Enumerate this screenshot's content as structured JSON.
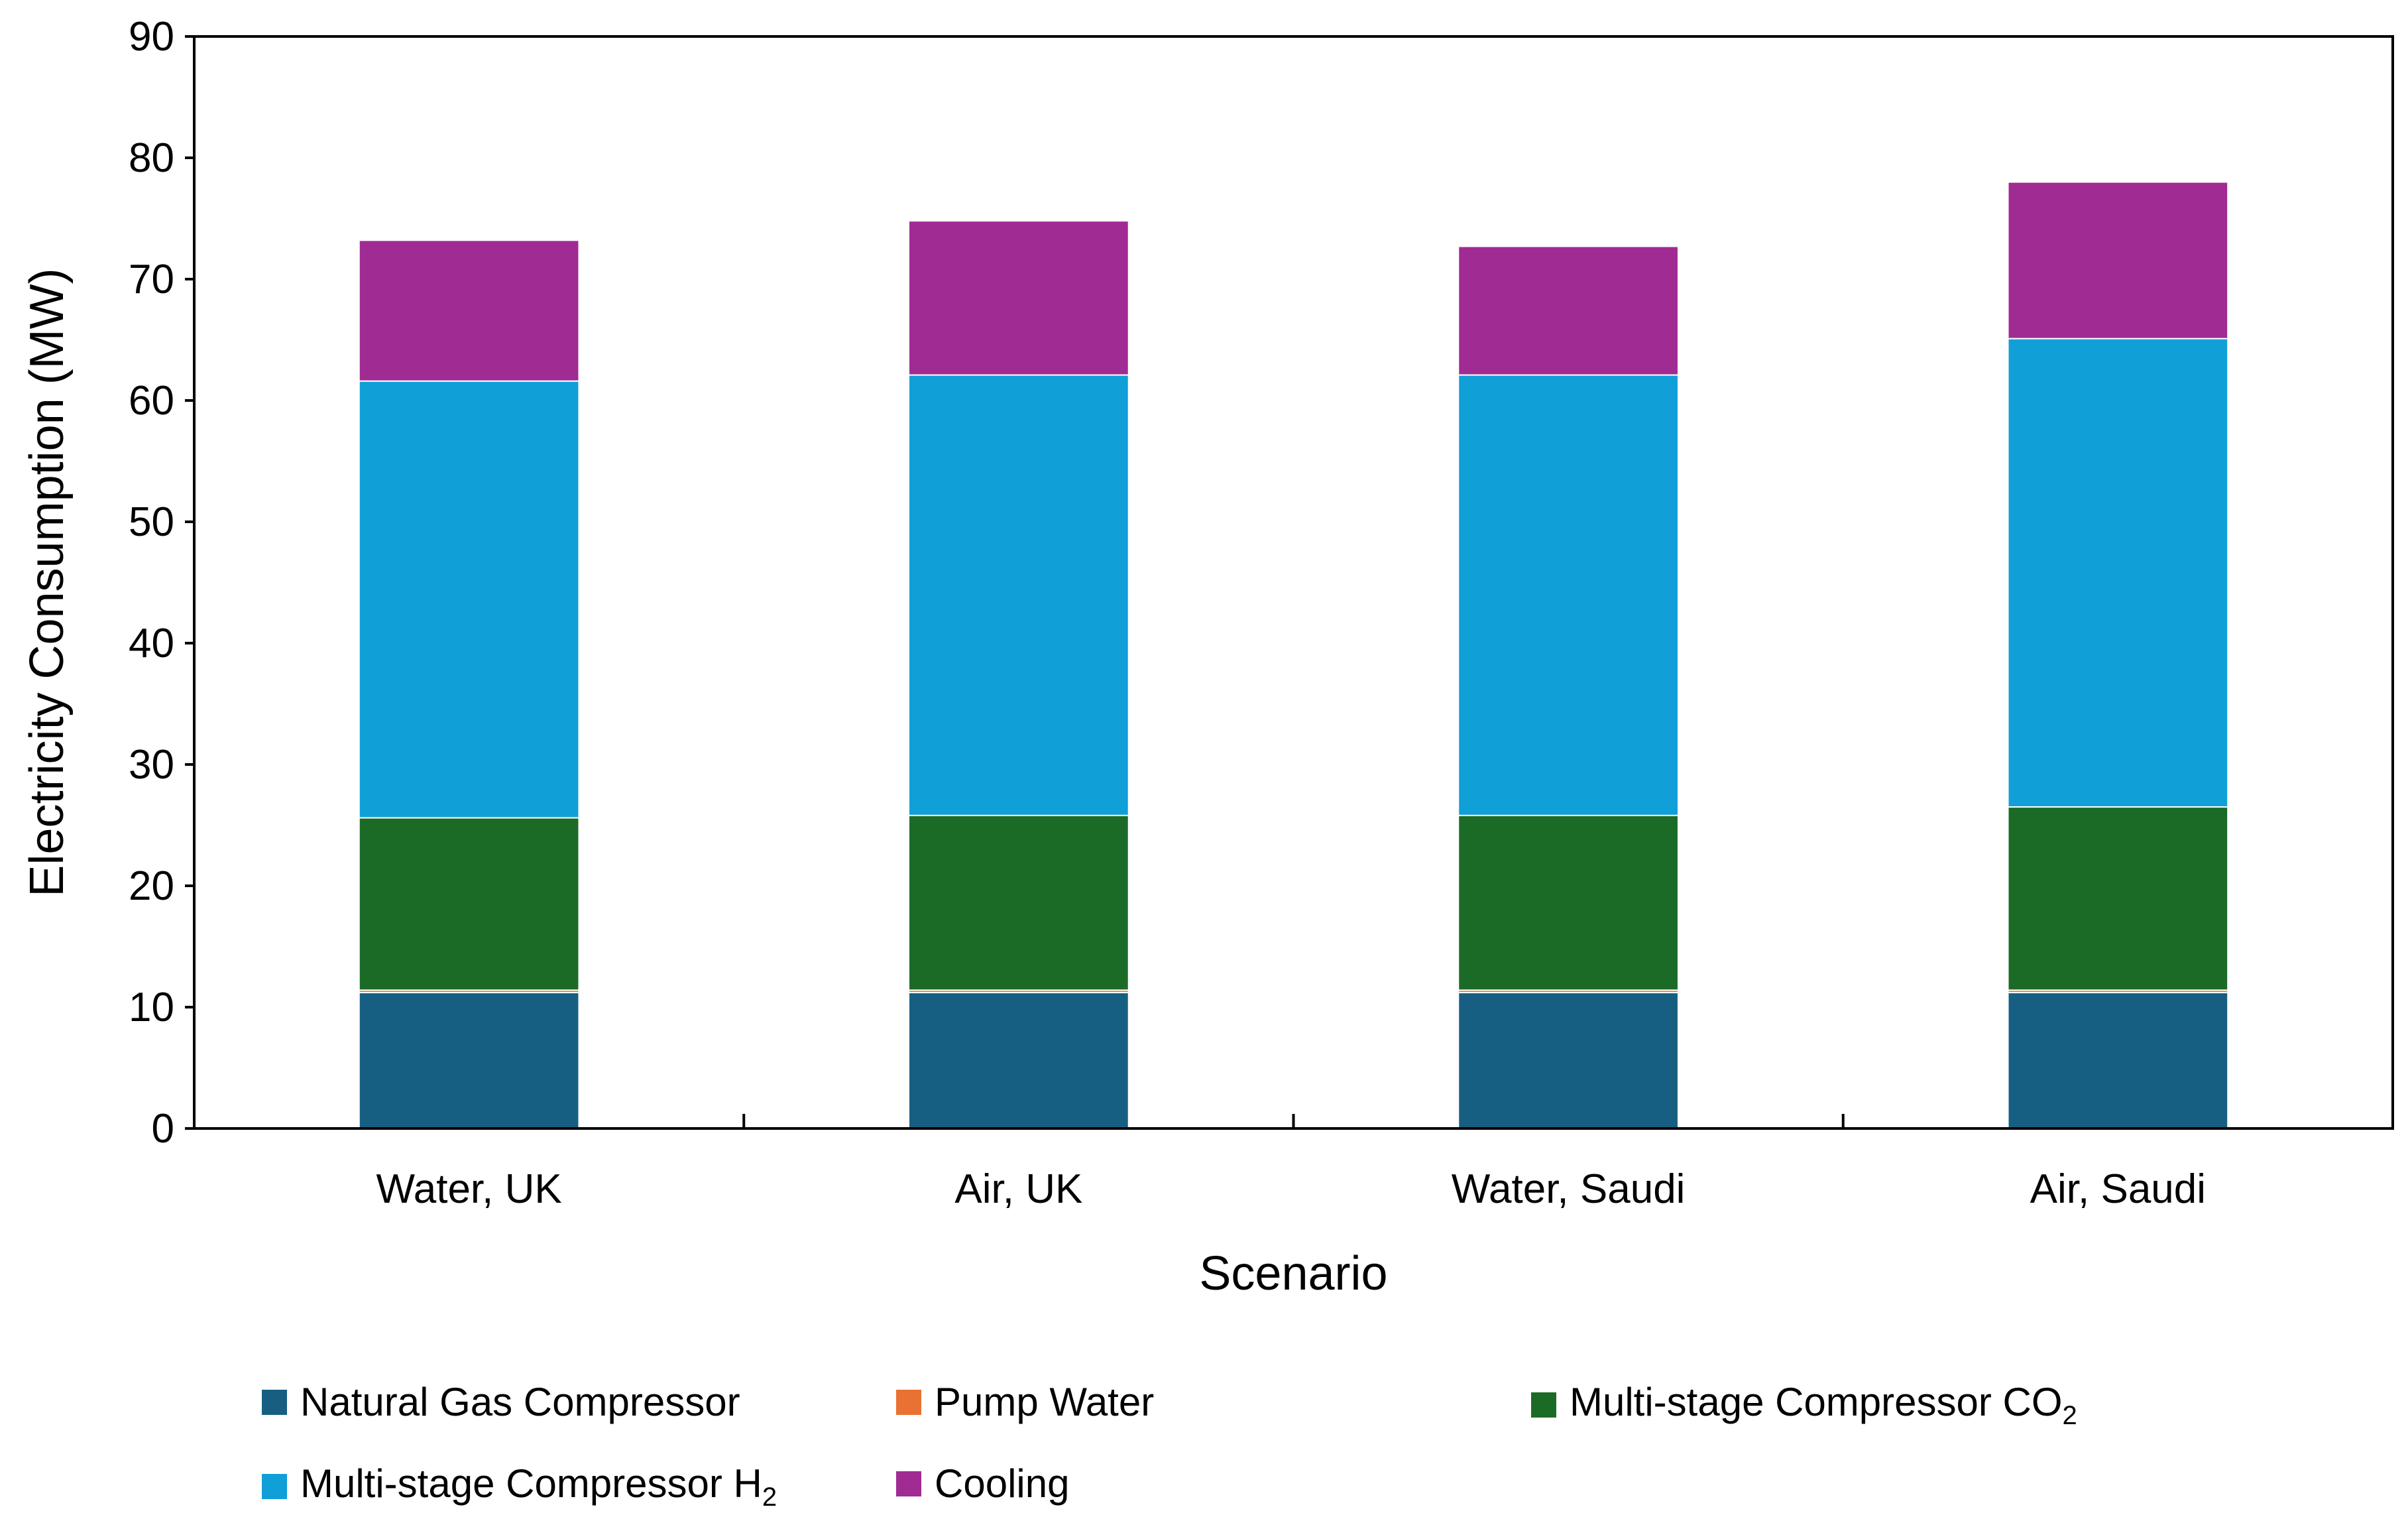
{
  "chart_data": {
    "type": "bar",
    "stacked": true,
    "categories": [
      "Water, UK",
      "Air, UK",
      "Water, Saudi",
      "Air, Saudi"
    ],
    "series": [
      {
        "name": "Natural Gas Compressor",
        "color": "#175f82",
        "values": [
          11.2,
          11.2,
          11.2,
          11.2
        ]
      },
      {
        "name": "Pump Water",
        "color": "#e97132",
        "values": [
          0.2,
          0.2,
          0.2,
          0.2
        ]
      },
      {
        "name": "Multi-stage Compressor CO2",
        "color": "#1b6b27",
        "values": [
          14.2,
          14.4,
          14.4,
          15.1
        ]
      },
      {
        "name": "Multi-stage Compressor H2",
        "color": "#119fd8",
        "values": [
          36.0,
          36.3,
          36.3,
          38.6
        ]
      },
      {
        "name": "Cooling",
        "color": "#a02b93",
        "values": [
          11.6,
          12.7,
          10.6,
          12.9
        ]
      }
    ],
    "xlabel": "Scenario",
    "ylabel": "Electricity Consumption (MW)",
    "ylim": [
      0,
      90
    ],
    "yticks": [
      0,
      10,
      20,
      30,
      40,
      50,
      60,
      70,
      80,
      90
    ],
    "grid": false,
    "legend_position": "bottom"
  },
  "legend": {
    "items": [
      {
        "text": "Natural Gas Compressor",
        "sub": ""
      },
      {
        "text": "Pump Water",
        "sub": ""
      },
      {
        "text": "Multi-stage Compressor CO",
        "sub": "2"
      },
      {
        "text": "Multi-stage Compressor H",
        "sub": "2"
      },
      {
        "text": "Cooling",
        "sub": ""
      }
    ]
  }
}
